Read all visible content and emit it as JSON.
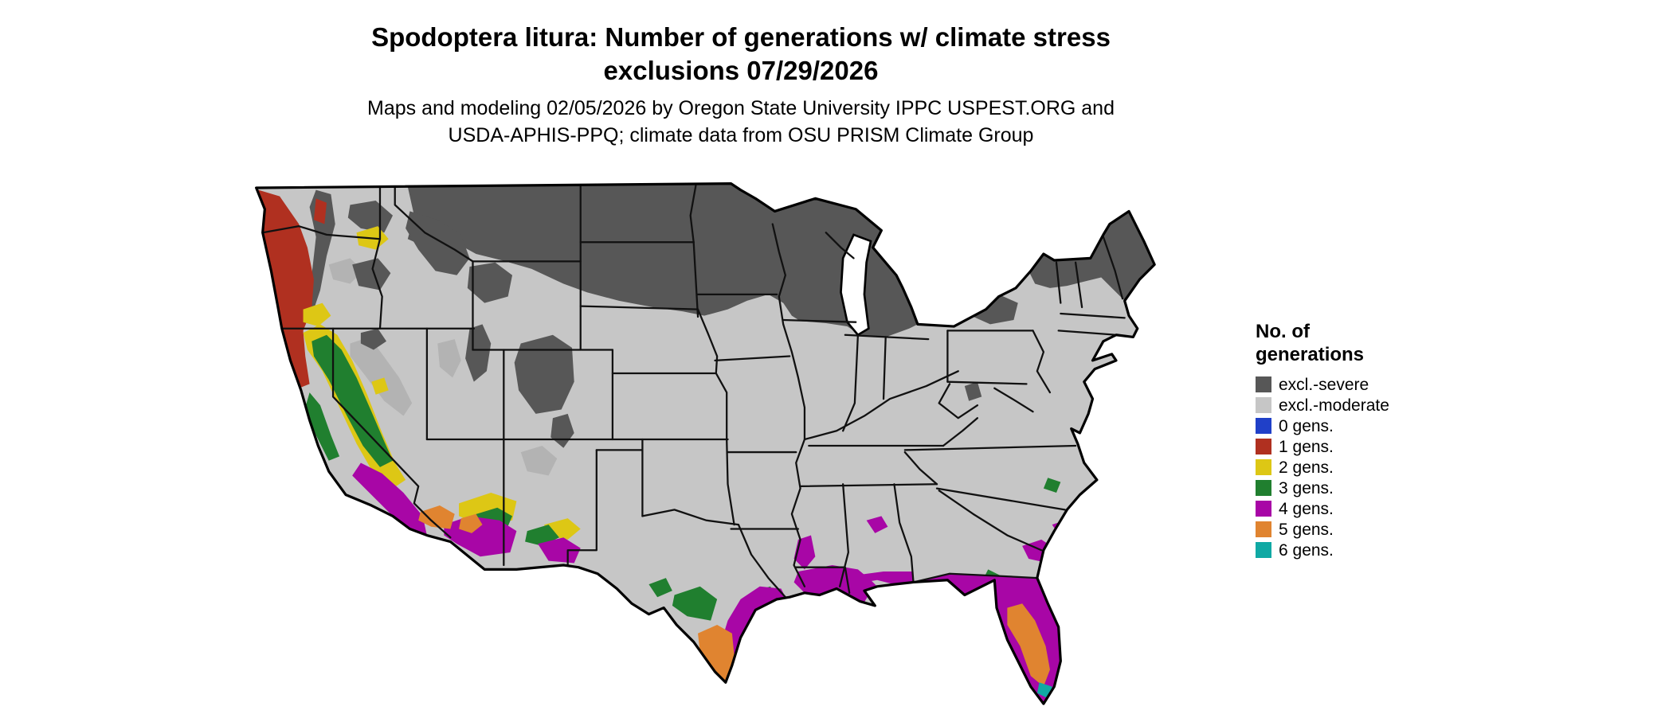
{
  "title": {
    "line1": "Spodoptera litura: Number of generations w/ climate stress",
    "line2": "exclusions 07/29/2026"
  },
  "subtitle": {
    "line1": "Maps and modeling 02/05/2026 by Oregon State University IPPC USPEST.ORG and",
    "line2": "USDA-APHIS-PPQ; climate data from OSU PRISM Climate Group"
  },
  "legend": {
    "title_line1": "No. of",
    "title_line2": "generations",
    "items": [
      {
        "key": "severe",
        "label": "excl.-severe",
        "color": "#575757"
      },
      {
        "key": "moderate",
        "label": "excl.-moderate",
        "color": "#c6c6c6"
      },
      {
        "key": "g0",
        "label": "0 gens.",
        "color": "#2040c8"
      },
      {
        "key": "g1",
        "label": "1 gens.",
        "color": "#b03020"
      },
      {
        "key": "g2",
        "label": "2 gens.",
        "color": "#ddc715"
      },
      {
        "key": "g3",
        "label": "3 gens.",
        "color": "#207f2f"
      },
      {
        "key": "g4",
        "label": "4 gens.",
        "color": "#a806a6"
      },
      {
        "key": "g5",
        "label": "5 gens.",
        "color": "#e08430"
      },
      {
        "key": "g6",
        "label": "6 gens.",
        "color": "#10a9a4"
      }
    ]
  },
  "map_data": {
    "type": "choropleth-map",
    "region": "Continental United States",
    "classes_shown_on_map": [
      {
        "class": "excl.-severe",
        "areas": "northern tier (Montana, Dakotas, Minnesota, Wisconsin, Michigan), northern Rockies, Colorado Rockies, New England and Adirondacks"
      },
      {
        "class": "excl.-moderate",
        "areas": "most of the central, southern and eastern U.S."
      },
      {
        "class": "1 gens.",
        "areas": "western Oregon and northwest California coast"
      },
      {
        "class": "2 gens.",
        "areas": "California Central Valley fringe, eastern Washington patches, central Arizona and New Mexico patches"
      },
      {
        "class": "3 gens.",
        "areas": "California Central Valley and central coast, southern Arizona/New Mexico patches, south Texas patches"
      },
      {
        "class": "4 gens.",
        "areas": "southern California, southern Arizona, Gulf Coast from Texas through Louisiana to Florida, most of Florida, coastal Georgia/Carolinas patches"
      },
      {
        "class": "5 gens.",
        "areas": "lower Rio Grande Valley Texas, central and southern Florida, Yuma/Imperial and Phoenix desert areas"
      },
      {
        "class": "6 gens.",
        "areas": "southern tip of Florida and Keys"
      }
    ]
  }
}
